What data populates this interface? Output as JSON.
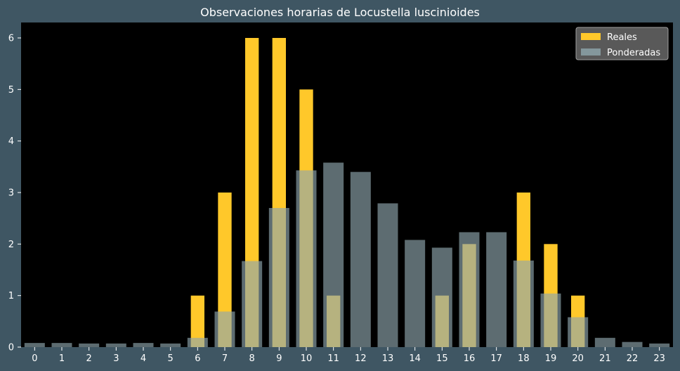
{
  "chart_data": {
    "type": "bar",
    "title": "Observaciones horarias de Locustella luscinioides",
    "xlabel": "",
    "ylabel": "",
    "categories": [
      "0",
      "1",
      "2",
      "3",
      "4",
      "5",
      "6",
      "7",
      "8",
      "9",
      "10",
      "11",
      "12",
      "13",
      "14",
      "15",
      "16",
      "17",
      "18",
      "19",
      "20",
      "21",
      "22",
      "23"
    ],
    "series": [
      {
        "name": "Reales",
        "color": "#ffc82a",
        "values": [
          0,
          0,
          0,
          0,
          0,
          0,
          1,
          3,
          6,
          6,
          5,
          1,
          0,
          0,
          0,
          1,
          2,
          0,
          3,
          2,
          1,
          0,
          0,
          0
        ]
      },
      {
        "name": "Ponderadas",
        "color": "#8fa6ad",
        "values": [
          0.08,
          0.08,
          0.07,
          0.07,
          0.08,
          0.07,
          0.18,
          0.69,
          1.67,
          2.7,
          3.43,
          3.58,
          3.4,
          2.79,
          2.08,
          1.93,
          2.23,
          2.23,
          1.68,
          1.04,
          0.58,
          0.18,
          0.1,
          0.07
        ]
      }
    ],
    "ylim": [
      0,
      6.3
    ],
    "yticks": [
      0,
      1,
      2,
      3,
      4,
      5,
      6
    ],
    "grid": false,
    "legend": "top-right",
    "plot_background": "#000000",
    "figure_background": "#3f5663"
  }
}
